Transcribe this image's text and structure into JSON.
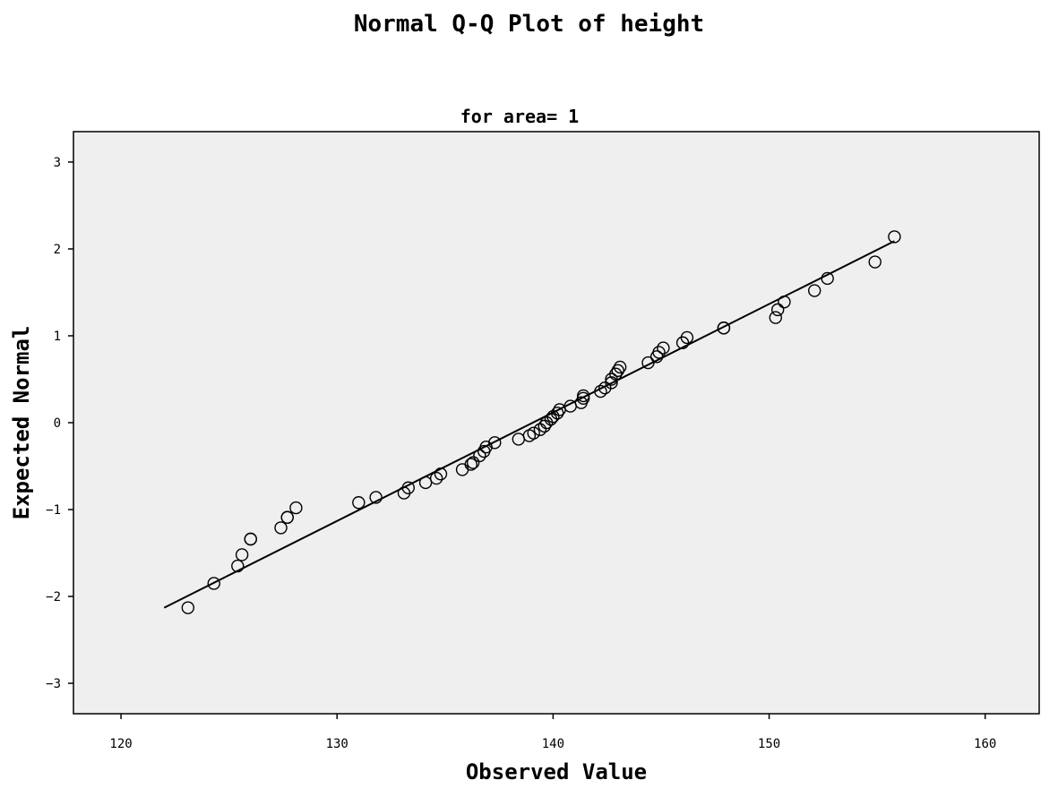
{
  "title": "Normal Q-Q Plot of height",
  "subtitle": "for area= 1",
  "chart_data": {
    "type": "scatter",
    "title": "Normal Q-Q Plot of height",
    "subtitle": "for area= 1",
    "xlabel": "Observed Value",
    "ylabel": "Expected Normal",
    "xlim": [
      117.8,
      162.5
    ],
    "ylim": [
      -3.35,
      3.35
    ],
    "xticks": [
      120,
      130,
      140,
      150,
      160
    ],
    "yticks": [
      -3,
      -2,
      -1,
      0,
      1,
      2,
      3
    ],
    "grid": false,
    "background": "#efefef",
    "marker": "open-circle",
    "reference_line": {
      "x": [
        122.0,
        155.8
      ],
      "y": [
        -2.13,
        2.09
      ]
    },
    "points": [
      {
        "x": 123.1,
        "y": -2.13
      },
      {
        "x": 124.3,
        "y": -1.85
      },
      {
        "x": 125.4,
        "y": -1.65
      },
      {
        "x": 125.6,
        "y": -1.52
      },
      {
        "x": 126.0,
        "y": -1.34
      },
      {
        "x": 126.0,
        "y": -1.34
      },
      {
        "x": 127.4,
        "y": -1.21
      },
      {
        "x": 127.7,
        "y": -1.09
      },
      {
        "x": 127.7,
        "y": -1.09
      },
      {
        "x": 128.1,
        "y": -0.98
      },
      {
        "x": 131.0,
        "y": -0.92
      },
      {
        "x": 131.8,
        "y": -0.86
      },
      {
        "x": 133.1,
        "y": -0.81
      },
      {
        "x": 133.3,
        "y": -0.75
      },
      {
        "x": 134.1,
        "y": -0.69
      },
      {
        "x": 134.6,
        "y": -0.64
      },
      {
        "x": 134.8,
        "y": -0.59
      },
      {
        "x": 135.8,
        "y": -0.54
      },
      {
        "x": 136.2,
        "y": -0.48
      },
      {
        "x": 136.3,
        "y": -0.46
      },
      {
        "x": 136.6,
        "y": -0.38
      },
      {
        "x": 136.8,
        "y": -0.33
      },
      {
        "x": 136.9,
        "y": -0.28
      },
      {
        "x": 137.3,
        "y": -0.23
      },
      {
        "x": 138.4,
        "y": -0.19
      },
      {
        "x": 138.9,
        "y": -0.15
      },
      {
        "x": 139.1,
        "y": -0.12
      },
      {
        "x": 139.4,
        "y": -0.08
      },
      {
        "x": 139.6,
        "y": -0.04
      },
      {
        "x": 139.7,
        "y": 0.0
      },
      {
        "x": 139.9,
        "y": 0.04
      },
      {
        "x": 140.0,
        "y": 0.07
      },
      {
        "x": 140.2,
        "y": 0.11
      },
      {
        "x": 140.3,
        "y": 0.15
      },
      {
        "x": 140.8,
        "y": 0.19
      },
      {
        "x": 141.3,
        "y": 0.23
      },
      {
        "x": 141.4,
        "y": 0.28
      },
      {
        "x": 141.4,
        "y": 0.31
      },
      {
        "x": 142.2,
        "y": 0.36
      },
      {
        "x": 142.4,
        "y": 0.4
      },
      {
        "x": 142.7,
        "y": 0.46
      },
      {
        "x": 142.7,
        "y": 0.5
      },
      {
        "x": 142.9,
        "y": 0.56
      },
      {
        "x": 143.0,
        "y": 0.6
      },
      {
        "x": 143.1,
        "y": 0.64
      },
      {
        "x": 144.4,
        "y": 0.69
      },
      {
        "x": 144.8,
        "y": 0.76
      },
      {
        "x": 144.9,
        "y": 0.81
      },
      {
        "x": 145.1,
        "y": 0.86
      },
      {
        "x": 146.0,
        "y": 0.92
      },
      {
        "x": 146.2,
        "y": 0.98
      },
      {
        "x": 147.9,
        "y": 1.09
      },
      {
        "x": 147.9,
        "y": 1.09
      },
      {
        "x": 150.3,
        "y": 1.21
      },
      {
        "x": 150.4,
        "y": 1.3
      },
      {
        "x": 150.7,
        "y": 1.39
      },
      {
        "x": 152.1,
        "y": 1.52
      },
      {
        "x": 152.7,
        "y": 1.66
      },
      {
        "x": 154.9,
        "y": 1.85
      },
      {
        "x": 155.8,
        "y": 2.14
      }
    ]
  }
}
